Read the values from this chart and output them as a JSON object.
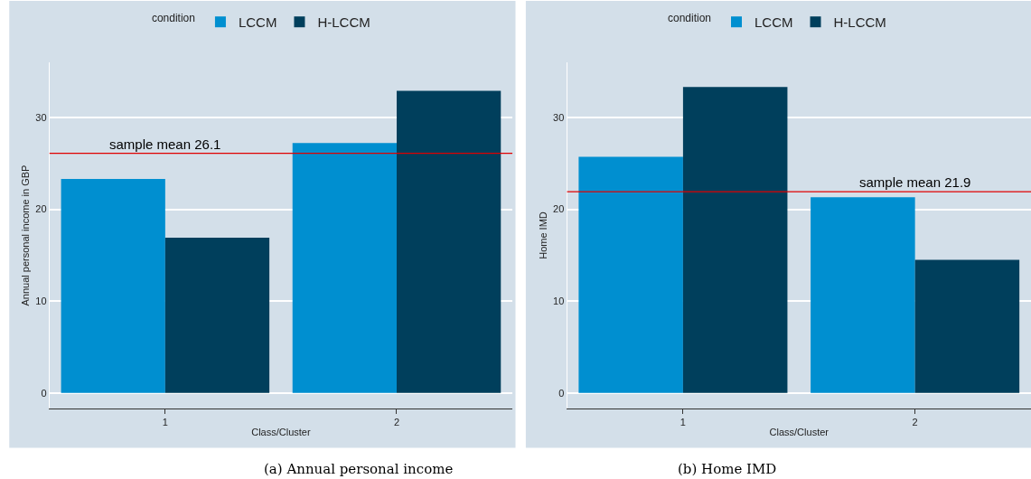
{
  "chart_data": [
    {
      "type": "bar",
      "categories": [
        "1",
        "2"
      ],
      "xlabel": "Class/Cluster",
      "ylabel": "Annual personal income in GBP",
      "legend_title": "condition",
      "legend": "top",
      "series": [
        {
          "name": "LCCM",
          "color": "#008fd0",
          "values": [
            23.3,
            27.2
          ]
        },
        {
          "name": "H-LCCM",
          "color": "#003f5c",
          "values": [
            16.9,
            32.9
          ]
        }
      ],
      "ylim": [
        -1.7,
        36
      ],
      "yticks": [
        0,
        10,
        20,
        30
      ],
      "grid": "y",
      "ref_lines": [
        {
          "axis": "y",
          "value": 26.1,
          "label": "sample mean 26.1",
          "color": "#e00000"
        }
      ],
      "annotations": [
        "(a) Annual personal income"
      ]
    },
    {
      "type": "bar",
      "categories": [
        "1",
        "2"
      ],
      "xlabel": "Class/Cluster",
      "ylabel": "Home IMD",
      "legend_title": "condition",
      "legend": "top",
      "series": [
        {
          "name": "LCCM",
          "color": "#008fd0",
          "values": [
            25.7,
            21.3
          ]
        },
        {
          "name": "H-LCCM",
          "color": "#003f5c",
          "values": [
            33.3,
            14.5
          ]
        }
      ],
      "ylim": [
        -1.7,
        36
      ],
      "yticks": [
        0,
        10,
        20,
        30
      ],
      "grid": "y",
      "ref_lines": [
        {
          "axis": "y",
          "value": 21.9,
          "label": "sample mean 21.9",
          "color": "#e00000"
        }
      ],
      "annotations": [
        "(b) Home IMD"
      ]
    }
  ]
}
